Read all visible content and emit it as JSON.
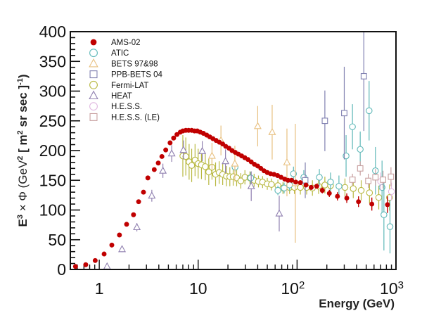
{
  "chart_data": {
    "type": "scatter",
    "title": "",
    "xlabel": "Energy (GeV)",
    "ylabel": "E^3 × Φ (GeV^2 [ m^2 sr sec ]^-1)",
    "ylabel_parts": {
      "base": "E",
      "exp3": "3",
      "times": " × Φ (GeV",
      "exp2": "2",
      "mid": " [ m",
      "exp2b": "2",
      "tail": " sr sec ]",
      "expm1": "-1",
      "close": ")"
    },
    "xscale": "log",
    "xlim": [
      0.51,
      1000
    ],
    "ylim": [
      0,
      400
    ],
    "x_ticks": [
      {
        "value": 1,
        "label": "1",
        "sup": ""
      },
      {
        "value": 10,
        "label": "10",
        "sup": ""
      },
      {
        "value": 100,
        "label": "10",
        "sup": "2"
      },
      {
        "value": 1000,
        "label": "10",
        "sup": "3"
      }
    ],
    "y_ticks": [
      0,
      50,
      100,
      150,
      200,
      250,
      300,
      350,
      400
    ],
    "grid": false,
    "legend_position": "top-left",
    "series": [
      {
        "name": "AMS-02",
        "marker": "filled-circle",
        "color": "#c00000",
        "points": [
          [
            0.575,
            5,
            1
          ],
          [
            0.73,
            8,
            1
          ],
          [
            0.91,
            15,
            1
          ],
          [
            1.12,
            26,
            1
          ],
          [
            1.34,
            41,
            1
          ],
          [
            1.6,
            58,
            1
          ],
          [
            1.89,
            76,
            1
          ],
          [
            2.22,
            92,
            1
          ],
          [
            2.5,
            114,
            1
          ],
          [
            2.8,
            130,
            1
          ],
          [
            3.1,
            154,
            1
          ],
          [
            3.6,
            168,
            1
          ],
          [
            3.95,
            179,
            1
          ],
          [
            4.3,
            190,
            1
          ],
          [
            4.7,
            201,
            1
          ],
          [
            5.2,
            213,
            1
          ],
          [
            5.65,
            221,
            1
          ],
          [
            6.1,
            227,
            1
          ],
          [
            6.6,
            231,
            2
          ],
          [
            7.0,
            233,
            2
          ],
          [
            7.5,
            234,
            2
          ],
          [
            8.0,
            234,
            2
          ],
          [
            8.6,
            234,
            2
          ],
          [
            9.2,
            233,
            2
          ],
          [
            9.8,
            233,
            2
          ],
          [
            10.5,
            231,
            2
          ],
          [
            11.3,
            229,
            2
          ],
          [
            12.2,
            226,
            2
          ],
          [
            13.1,
            223,
            2
          ],
          [
            14.1,
            220,
            2
          ],
          [
            15.2,
            217,
            2
          ],
          [
            16.4,
            214,
            2
          ],
          [
            17.7,
            211,
            2
          ],
          [
            19.0,
            207,
            2
          ],
          [
            20.5,
            204,
            2
          ],
          [
            22.0,
            200,
            2
          ],
          [
            23.7,
            197,
            2
          ],
          [
            25.5,
            194,
            2
          ],
          [
            27.5,
            191,
            2
          ],
          [
            29.6,
            188,
            2
          ],
          [
            31.9,
            185,
            2
          ],
          [
            34.4,
            181,
            2
          ],
          [
            37.0,
            177,
            2
          ],
          [
            40.0,
            174,
            2
          ],
          [
            43.0,
            170,
            2
          ],
          [
            46.3,
            166,
            2
          ],
          [
            50.0,
            163,
            2
          ],
          [
            54.0,
            161,
            2
          ],
          [
            58.5,
            160,
            2
          ],
          [
            63.5,
            158,
            2
          ],
          [
            69.0,
            155,
            2
          ],
          [
            75.0,
            152,
            2
          ],
          [
            81.0,
            150,
            2
          ],
          [
            88.0,
            150,
            2
          ],
          [
            97.0,
            147,
            2
          ],
          [
            108,
            146,
            3
          ],
          [
            123,
            142,
            3
          ],
          [
            139,
            138,
            4
          ],
          [
            158,
            140,
            4
          ],
          [
            180,
            133,
            5
          ],
          [
            212,
            128,
            6
          ],
          [
            256,
            123,
            7
          ],
          [
            318,
            120,
            8
          ],
          [
            418,
            114,
            9
          ],
          [
            570,
            110,
            11
          ],
          [
            820,
            109,
            14
          ]
        ]
      },
      {
        "name": "ATIC",
        "marker": "open-circle",
        "color": "#5fb8b8",
        "points": [
          [
            23.6,
            172,
            8
          ],
          [
            34,
            154,
            10
          ],
          [
            64,
            133,
            8
          ],
          [
            74,
            137,
            9
          ],
          [
            84,
            142,
            10
          ],
          [
            92,
            161,
            12
          ],
          [
            117,
            155,
            12
          ],
          [
            168,
            155,
            14
          ],
          [
            218,
            147,
            16
          ],
          [
            265,
            140,
            18
          ],
          [
            313,
            191,
            35
          ],
          [
            363,
            240,
            38
          ],
          [
            435,
            202,
            30
          ],
          [
            535,
            267,
            50
          ],
          [
            620,
            166,
            40
          ],
          [
            723,
            138,
            45
          ],
          [
            755,
            92,
            60
          ],
          [
            870,
            72,
            45
          ]
        ]
      },
      {
        "name": "BETS 97&98",
        "marker": "open-triangle",
        "color": "#e8c080",
        "points": [
          [
            13.8,
            191,
            22
          ],
          [
            17,
            217,
            25
          ],
          [
            23.5,
            178,
            30
          ],
          [
            40,
            241,
            34
          ],
          [
            56,
            231,
            46
          ],
          [
            79,
            180,
            57
          ],
          [
            96,
            145,
            100
          ]
        ]
      },
      {
        "name": "PPB-BETS 04",
        "marker": "open-square",
        "color": "#8080b0",
        "points": [
          [
            121,
            150,
            30
          ],
          [
            191,
            250,
            51
          ],
          [
            300,
            263,
            78
          ],
          [
            473,
            325,
            92
          ]
        ]
      },
      {
        "name": "Fermi-LAT",
        "marker": "open-circle",
        "color": "#b8b840",
        "points": [
          [
            7.0,
            191,
            35
          ],
          [
            7.5,
            190,
            32
          ],
          [
            8.1,
            181,
            30
          ],
          [
            8.6,
            175,
            28
          ],
          [
            9.3,
            184,
            27
          ],
          [
            10.0,
            178,
            25
          ],
          [
            10.8,
            176,
            24
          ],
          [
            11.8,
            173,
            23
          ],
          [
            12.8,
            164,
            22
          ],
          [
            13.8,
            172,
            21
          ],
          [
            15.0,
            160,
            20
          ],
          [
            16.3,
            163,
            19
          ],
          [
            17.7,
            160,
            18
          ],
          [
            19.3,
            157,
            17
          ],
          [
            20.9,
            156,
            16
          ],
          [
            22.6,
            156,
            15
          ],
          [
            24.5,
            154,
            14
          ],
          [
            27,
            149,
            13
          ],
          [
            29.7,
            155,
            12
          ],
          [
            33.4,
            154,
            11
          ],
          [
            36.8,
            150,
            11
          ],
          [
            40.7,
            148,
            10
          ],
          [
            44.8,
            147,
            10
          ],
          [
            50,
            144,
            10
          ],
          [
            55,
            143,
            10
          ],
          [
            64,
            141,
            10
          ],
          [
            72,
            137,
            10
          ],
          [
            84,
            138,
            11
          ],
          [
            94,
            138,
            11
          ],
          [
            108,
            138,
            12
          ],
          [
            125,
            138,
            12
          ],
          [
            143,
            137,
            13
          ],
          [
            165,
            140,
            13
          ],
          [
            191,
            142,
            14
          ],
          [
            218,
            141,
            14
          ],
          [
            305,
            138,
            15
          ],
          [
            370,
            136,
            16
          ],
          [
            445,
            133,
            17
          ],
          [
            540,
            129,
            18
          ],
          [
            670,
            121,
            20
          ],
          [
            860,
            121,
            22
          ]
        ]
      },
      {
        "name": "HEAT",
        "marker": "open-triangle",
        "color": "#9080b0",
        "points": [
          [
            1.2,
            5,
            3
          ],
          [
            1.7,
            34,
            5
          ],
          [
            2.4,
            71,
            7
          ],
          [
            3.4,
            124,
            10
          ],
          [
            4.4,
            166,
            12
          ],
          [
            5.4,
            195,
            14
          ],
          [
            7.1,
            201,
            16
          ],
          [
            11,
            199,
            17
          ],
          [
            18.9,
            182,
            20
          ],
          [
            34.4,
            140,
            25
          ],
          [
            66,
            94,
            30
          ]
        ]
      },
      {
        "name": "H.E.S.S.",
        "marker": "open-circle",
        "color": "#e0b8e0",
        "points": [
          [
            700,
            148,
            15
          ],
          [
            900,
            131,
            15
          ]
        ]
      },
      {
        "name": "H.E.S.S. (LE)",
        "marker": "open-square",
        "color": "#c8a0a0",
        "points": [
          [
            363,
            151,
            10
          ],
          [
            435,
            170,
            12
          ],
          [
            525,
            149,
            12
          ],
          [
            620,
            155,
            14
          ],
          [
            740,
            151,
            15
          ],
          [
            890,
            156,
            16
          ]
        ]
      }
    ],
    "point_format": "[energy_GeV, value, error]"
  }
}
